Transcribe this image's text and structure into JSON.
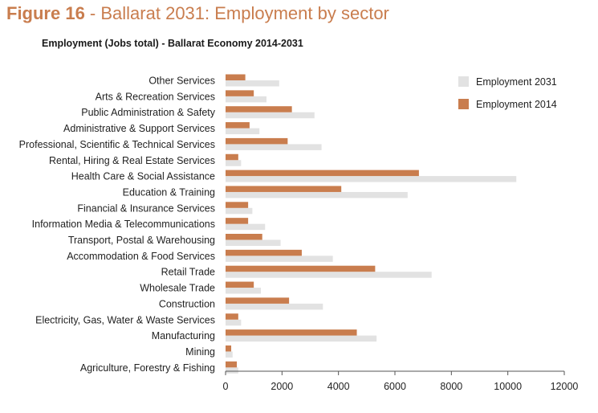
{
  "figure": {
    "number": "Figure 16",
    "separator": " - ",
    "title": "Ballarat 2031: Employment by sector"
  },
  "chart_data": {
    "type": "bar",
    "orientation": "horizontal",
    "title": "Employment (Jobs total) - Ballarat Economy 2014-2031",
    "xlabel": "",
    "ylabel": "",
    "xlim": [
      0,
      12000
    ],
    "xticks": [
      0,
      2000,
      4000,
      6000,
      8000,
      10000,
      12000
    ],
    "grid": false,
    "legend_position": "top-right",
    "categories": [
      "Other Services",
      "Arts & Recreation Services",
      "Public Administration & Safety",
      "Administrative & Support Services",
      "Professional, Scientific & Technical Services",
      "Rental, Hiring & Real Estate Services",
      "Health Care & Social Assistance",
      "Education & Training",
      "Financial & Insurance Services",
      "Information Media & Telecommunications",
      "Transport, Postal & Warehousing",
      "Accommodation & Food Services",
      "Retail Trade",
      "Wholesale Trade",
      "Construction",
      "Electricity, Gas, Water & Waste Services",
      "Manufacturing",
      "Mining",
      "Agriculture, Forestry & Fishing"
    ],
    "series": [
      {
        "name": "Employment 2031",
        "color": "#e2e2e2",
        "values": [
          1900,
          1450,
          3150,
          1200,
          3400,
          550,
          10300,
          6450,
          950,
          1400,
          1950,
          3800,
          7300,
          1250,
          3450,
          550,
          5350,
          250,
          450
        ]
      },
      {
        "name": "Employment 2014",
        "color": "#c97d4e",
        "values": [
          700,
          1000,
          2350,
          850,
          2200,
          450,
          6850,
          4100,
          800,
          800,
          1300,
          2700,
          5300,
          1000,
          2250,
          450,
          4650,
          200,
          400
        ]
      }
    ]
  }
}
